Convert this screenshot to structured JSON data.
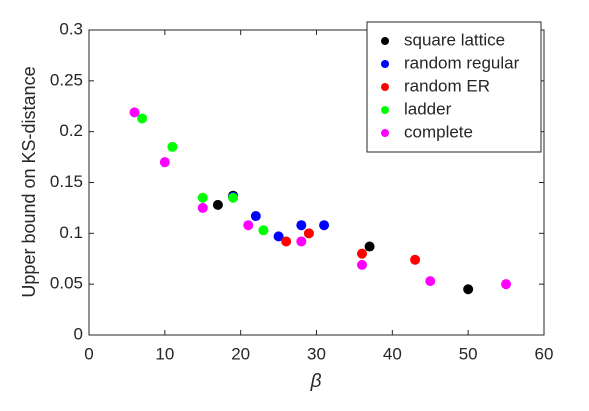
{
  "chart_data": {
    "type": "scatter",
    "x_label": "β",
    "y_label": "Upper bound on KS-distance",
    "xlim": [
      0,
      60
    ],
    "xticks": [
      0,
      10,
      20,
      30,
      40,
      50,
      60
    ],
    "ylim": [
      0,
      0.3
    ],
    "yticks": [
      0,
      0.05,
      0.1,
      0.15,
      0.2,
      0.25,
      0.3
    ],
    "legend": "northeast",
    "series": [
      {
        "name": "square lattice",
        "color": "#000000",
        "x": [
          17,
          19,
          37,
          50
        ],
        "values": [
          0.128,
          0.137,
          0.087,
          0.045
        ]
      },
      {
        "name": "random regular",
        "color": "#0000ff",
        "x": [
          19,
          22,
          25,
          28,
          31
        ],
        "values": [
          0.136,
          0.117,
          0.097,
          0.108,
          0.108
        ]
      },
      {
        "name": "random ER",
        "color": "#ff0000",
        "x": [
          26,
          29,
          36,
          43
        ],
        "values": [
          0.092,
          0.1,
          0.08,
          0.074
        ]
      },
      {
        "name": "ladder",
        "color": "#00ff00",
        "x": [
          7,
          11,
          15,
          19,
          23
        ],
        "values": [
          0.213,
          0.185,
          0.135,
          0.135,
          0.103
        ]
      },
      {
        "name": "complete",
        "color": "#ff00ff",
        "x": [
          6,
          10,
          15,
          21,
          28,
          36,
          45,
          55
        ],
        "values": [
          0.219,
          0.17,
          0.125,
          0.108,
          0.092,
          0.069,
          0.053,
          0.05
        ]
      }
    ]
  }
}
